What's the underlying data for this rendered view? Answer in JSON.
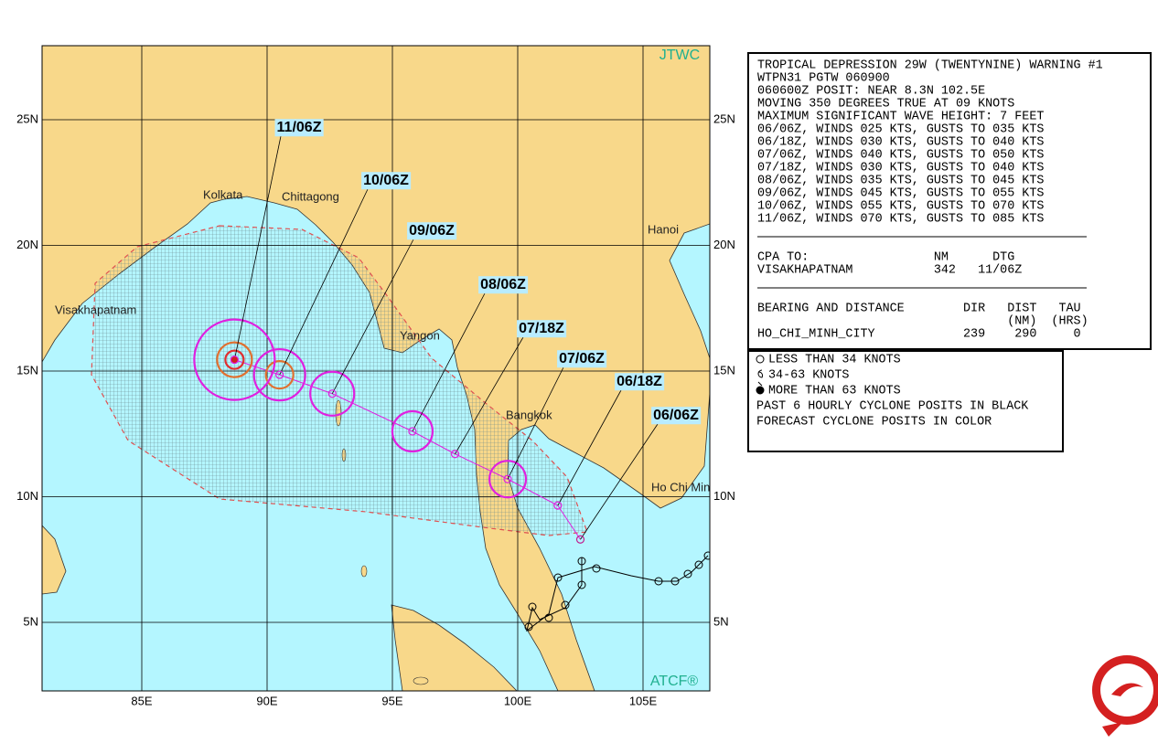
{
  "map": {
    "watermark_top": "JTWC",
    "watermark_bottom": "ATCF®",
    "lon_ticks": [
      {
        "value": 85,
        "label": "85E"
      },
      {
        "value": 90,
        "label": "90E"
      },
      {
        "value": 95,
        "label": "95E"
      },
      {
        "value": 100,
        "label": "100E"
      },
      {
        "value": 105,
        "label": "105E"
      }
    ],
    "lat_ticks": [
      {
        "value": 25,
        "label": "25N"
      },
      {
        "value": 20,
        "label": "20N"
      },
      {
        "value": 15,
        "label": "15N"
      },
      {
        "value": 10,
        "label": "10N"
      },
      {
        "value": 5,
        "label": "5N"
      }
    ],
    "places": [
      "Kolkata",
      "Chittagong",
      "Hanoi",
      "Visakhapatnam",
      "Yangon",
      "Bangkok",
      "Ho Chi Minh"
    ],
    "forecast": [
      {
        "label": "06/06Z",
        "lat": 8.3,
        "lon": 102.5
      },
      {
        "label": "06/18Z",
        "lat": 9.65,
        "lon": 101.6
      },
      {
        "label": "07/06Z",
        "lat": 10.7,
        "lon": 99.6
      },
      {
        "label": "07/18Z",
        "lat": 11.7,
        "lon": 97.5
      },
      {
        "label": "08/06Z",
        "lat": 12.6,
        "lon": 95.8
      },
      {
        "label": "09/06Z",
        "lat": 14.1,
        "lon": 92.6
      },
      {
        "label": "10/06Z",
        "lat": 14.85,
        "lon": 90.5
      },
      {
        "label": "11/06Z",
        "lat": 15.45,
        "lon": 88.7
      }
    ]
  },
  "warning": {
    "header": [
      "TROPICAL DEPRESSION 29W (TWENTYNINE) WARNING #1",
      "WTPN31 PGTW 060900",
      "060600Z POSIT: NEAR 8.3N 102.5E",
      "MOVING 350 DEGREES TRUE AT 09 KNOTS",
      "MAXIMUM SIGNIFICANT WAVE HEIGHT: 7 FEET",
      "06/06Z, WINDS 025 KTS, GUSTS TO 035 KTS",
      "06/18Z, WINDS 030 KTS, GUSTS TO 040 KTS",
      "07/06Z, WINDS 040 KTS, GUSTS TO 050 KTS",
      "07/18Z, WINDS 030 KTS, GUSTS TO 040 KTS",
      "08/06Z, WINDS 035 KTS, GUSTS TO 045 KTS",
      "09/06Z, WINDS 045 KTS, GUSTS TO 055 KTS",
      "10/06Z, WINDS 055 KTS, GUSTS TO 070 KTS",
      "11/06Z, WINDS 070 KTS, GUSTS TO 085 KTS"
    ],
    "cpa": [
      "CPA TO:                 NM      DTG",
      "VISAKHAPATNAM           342   11/06Z"
    ],
    "bearing": [
      "BEARING AND DISTANCE        DIR   DIST   TAU",
      "                                  (NM)  (HRS)",
      "HO_CHI_MINH_CITY            239    290     0"
    ]
  },
  "legend": [
    "LESS THAN 34 KNOTS",
    "34-63 KNOTS",
    "MORE THAN 63 KNOTS",
    "PAST 6 HOURLY CYCLONE POSITS IN BLACK",
    "FORECAST CYCLONE POSITS IN COLOR"
  ]
}
